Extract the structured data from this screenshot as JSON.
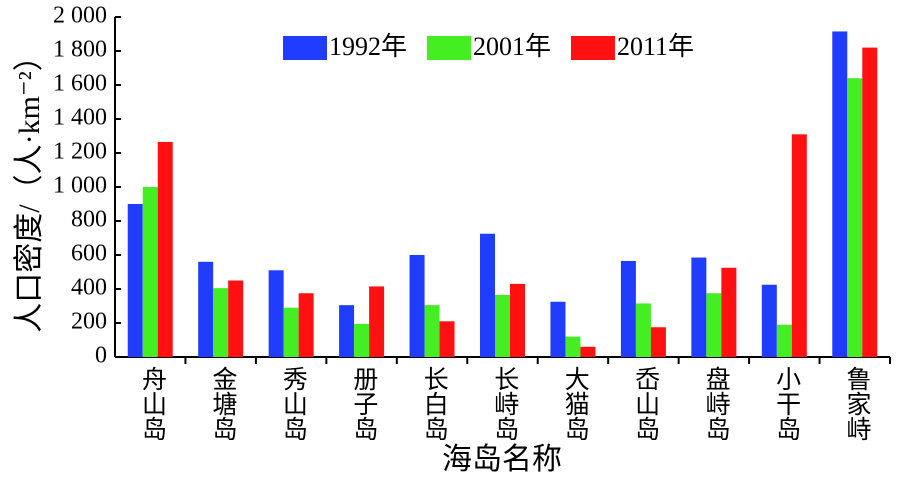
{
  "chart_data": {
    "type": "bar",
    "x_label": "海岛名称",
    "y_label": "人口密度/（人·km⁻²）",
    "categories": [
      "舟山岛",
      "金塘岛",
      "秀山岛",
      "册子岛",
      "长白岛",
      "长峙岛",
      "大猫岛",
      "岙山岛",
      "盘峙岛",
      "小干岛",
      "鲁家峙"
    ],
    "series": [
      {
        "name": "1992年",
        "color": "#1f3cff",
        "values": [
          900,
          560,
          510,
          305,
          600,
          725,
          325,
          565,
          585,
          425,
          1915
        ]
      },
      {
        "name": "2001年",
        "color": "#44ee22",
        "values": [
          1000,
          405,
          290,
          195,
          305,
          365,
          120,
          315,
          375,
          190,
          1640
        ]
      },
      {
        "name": "2011年",
        "color": "#ff1111",
        "values": [
          1265,
          450,
          375,
          415,
          210,
          430,
          60,
          175,
          525,
          1310,
          1820
        ]
      }
    ],
    "ylim": [
      0,
      2000
    ],
    "yticks": [
      0,
      200,
      400,
      600,
      800,
      {
        "value": 1000,
        "label": "1 000"
      },
      {
        "value": 1200,
        "label": "1 200"
      },
      {
        "value": 1400,
        "label": "1 400"
      },
      {
        "value": 1600,
        "label": "1 600"
      },
      {
        "value": 1800,
        "label": "1 800"
      },
      {
        "value": 2000,
        "label": "2 000"
      }
    ],
    "legend": "top"
  }
}
